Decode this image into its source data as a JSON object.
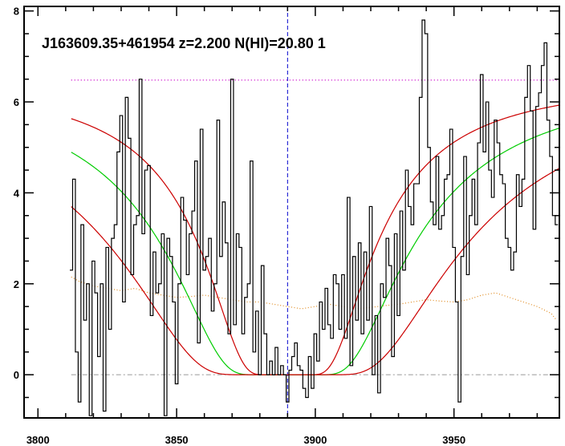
{
  "chart_data": {
    "type": "line",
    "title": "J163609.35+461954 z=2.200 N(HI)=20.80 1",
    "xlabel": "",
    "ylabel": "",
    "xlim": [
      3795,
      3988
    ],
    "ylim": [
      -0.95,
      8.1
    ],
    "x_ticks": [
      3800,
      3850,
      3900,
      3950
    ],
    "y_ticks": [
      0,
      2,
      4,
      6,
      8
    ],
    "grid": false,
    "legend": "none",
    "colors": {
      "spectrum": "#000000",
      "fit": "#00cc00",
      "fit_bounds": "#cc0000",
      "error": "#e08a1e",
      "continuum": "#cc00cc",
      "line_center": "#0000cc",
      "zero": "#999999"
    },
    "continuum_level": 6.48,
    "line_center_x": 3890,
    "zero_level": 0,
    "series": [
      {
        "kind": "flux",
        "x": [
          3812,
          3813,
          3814,
          3815,
          3816,
          3817,
          3818,
          3819,
          3820,
          3821,
          3822,
          3823,
          3824,
          3825,
          3826,
          3827,
          3828,
          3829,
          3830,
          3831,
          3832,
          3833,
          3834,
          3835,
          3836,
          3837,
          3838,
          3839,
          3840,
          3841,
          3842,
          3843,
          3844,
          3845,
          3846,
          3847,
          3848,
          3849,
          3850,
          3851,
          3852,
          3853,
          3854,
          3855,
          3856,
          3857,
          3858,
          3859,
          3860,
          3861,
          3862,
          3863,
          3864,
          3865,
          3866,
          3867,
          3868,
          3869,
          3870,
          3871,
          3872,
          3873,
          3874,
          3875,
          3876,
          3877,
          3878,
          3879,
          3880,
          3881,
          3882,
          3883,
          3884,
          3885,
          3886,
          3887,
          3888,
          3889,
          3890,
          3891,
          3892,
          3893,
          3894,
          3895,
          3896,
          3897,
          3898,
          3899,
          3900,
          3901,
          3902,
          3903,
          3904,
          3905,
          3906,
          3907,
          3908,
          3909,
          3910,
          3911,
          3912,
          3913,
          3914,
          3915,
          3916,
          3917,
          3918,
          3919,
          3920,
          3921,
          3922,
          3923,
          3924,
          3925,
          3926,
          3927,
          3928,
          3929,
          3930,
          3931,
          3932,
          3933,
          3934,
          3935,
          3936,
          3937,
          3938,
          3939,
          3940,
          3941,
          3942,
          3943,
          3944,
          3945,
          3946,
          3947,
          3948,
          3949,
          3950,
          3951,
          3952,
          3953,
          3954,
          3955,
          3956,
          3957,
          3958,
          3959,
          3960,
          3961,
          3962,
          3963,
          3964,
          3965,
          3966,
          3967,
          3968,
          3969,
          3970,
          3971,
          3972,
          3973,
          3974,
          3975,
          3976,
          3977,
          3978,
          3979,
          3980,
          3981,
          3982,
          3983,
          3984,
          3985,
          3986,
          3987
        ],
        "values": [
          2.3,
          4.3,
          0.5,
          -0.6,
          3.3,
          1.2,
          2.0,
          -0.9,
          2.5,
          1.8,
          0.4,
          2.0,
          -0.8,
          2.8,
          1.0,
          3.0,
          3.3,
          4.9,
          5.7,
          1.6,
          6.1,
          5.2,
          2.2,
          3.3,
          3.5,
          6.5,
          3.1,
          4.5,
          4.6,
          1.3,
          2.7,
          1.8,
          2.0,
          3.1,
          -0.9,
          3.0,
          2.6,
          1.6,
          -0.2,
          2.0,
          3.9,
          3.4,
          2.2,
          3.1,
          3.6,
          4.7,
          0.7,
          5.4,
          2.3,
          2.6,
          3.0,
          1.4,
          2.0,
          5.6,
          2.6,
          3.8,
          2.9,
          0.9,
          6.5,
          1.1,
          3.1,
          2.8,
          0.9,
          1.7,
          2.0,
          4.7,
          0.5,
          1.4,
          0.0,
          2.4,
          0.9,
          0.0,
          0.3,
          0.0,
          0.6,
          0.0,
          0.2,
          0.0,
          -0.6,
          0.1,
          0.4,
          0.7,
          0.2,
          0.1,
          -0.3,
          -0.5,
          0.4,
          -0.3,
          0.9,
          0.3,
          1.6,
          1.0,
          1.9,
          1.1,
          0.8,
          2.2,
          2.0,
          1.0,
          2.2,
          0.8,
          3.9,
          0.2,
          2.6,
          1.2,
          2.9,
          0.9,
          2.7,
          1.2,
          3.7,
          0.0,
          1.3,
          -0.4,
          2.0,
          1.7,
          3.0,
          2.4,
          0.4,
          3.1,
          1.3,
          3.6,
          2.3,
          4.5,
          3.7,
          3.3,
          4.2,
          4.2,
          6.1,
          7.8,
          7.5,
          5.0,
          3.8,
          3.3,
          4.8,
          3.2,
          3.5,
          4.3,
          4.4,
          5.4,
          2.8,
          1.6,
          -0.6,
          2.6,
          4.8,
          2.2,
          3.5,
          4.3,
          3.3,
          5.1,
          6.6,
          4.9,
          6.0,
          4.5,
          3.9,
          5.6,
          5.1,
          4.4,
          4.2,
          3.0,
          2.8,
          2.3,
          2.7,
          4.4,
          3.7,
          4.3,
          6.1,
          6.8,
          5.8,
          3.2,
          5.9,
          6.2,
          6.8,
          7.3,
          5.6,
          4.8,
          3.5,
          3.3
        ]
      },
      {
        "kind": "error",
        "x": [
          3812,
          3815,
          3820,
          3825,
          3830,
          3835,
          3840,
          3845,
          3850,
          3855,
          3860,
          3865,
          3870,
          3875,
          3880,
          3885,
          3890,
          3895,
          3900,
          3905,
          3910,
          3915,
          3920,
          3925,
          3930,
          3935,
          3940,
          3945,
          3950,
          3955,
          3960,
          3965,
          3970,
          3975,
          3980,
          3985,
          3987
        ],
        "values": [
          2.15,
          2.05,
          1.95,
          1.9,
          1.85,
          1.9,
          1.8,
          1.75,
          1.7,
          1.72,
          1.75,
          1.7,
          1.65,
          1.6,
          1.6,
          1.55,
          1.5,
          1.45,
          1.5,
          1.55,
          1.5,
          1.45,
          1.48,
          1.52,
          1.55,
          1.6,
          1.65,
          1.62,
          1.6,
          1.65,
          1.75,
          1.8,
          1.7,
          1.6,
          1.5,
          1.35,
          1.2
        ]
      }
    ]
  }
}
